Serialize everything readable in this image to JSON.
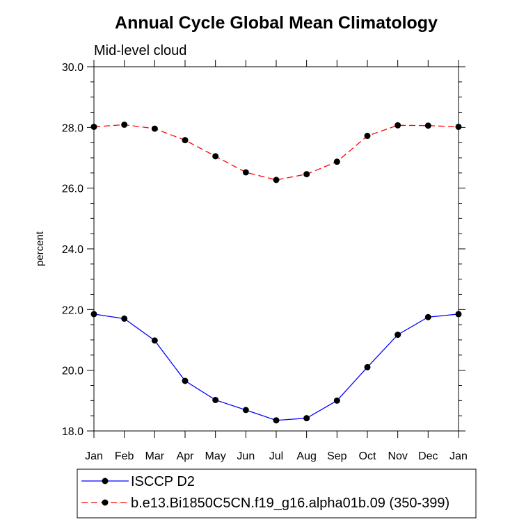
{
  "chart_data": {
    "type": "line",
    "title": "Annual Cycle Global Mean Climatology",
    "subtitle": "Mid-level cloud",
    "ylabel": "percent",
    "xlabel": "",
    "categories": [
      "Jan",
      "Feb",
      "Mar",
      "Apr",
      "May",
      "Jun",
      "Jul",
      "Aug",
      "Sep",
      "Oct",
      "Nov",
      "Dec",
      "Jan"
    ],
    "ylim": [
      18.0,
      30.0
    ],
    "yticks": [
      "18.0",
      "20.0",
      "22.0",
      "24.0",
      "26.0",
      "28.0",
      "30.0"
    ],
    "grid": false,
    "legend_position": "bottom",
    "series": [
      {
        "name": "ISCCP D2",
        "color": "#0000ff",
        "dash": "solid",
        "values": [
          21.85,
          21.7,
          20.98,
          19.65,
          19.02,
          18.69,
          18.35,
          18.42,
          19.0,
          20.1,
          21.17,
          21.75,
          21.85
        ]
      },
      {
        "name": "b.e13.Bi1850C5CN.f19_g16.alpha01b.09 (350-399)",
        "color": "#ff0000",
        "dash": "dashed",
        "values": [
          28.02,
          28.09,
          27.96,
          27.58,
          27.05,
          26.52,
          26.27,
          26.46,
          26.87,
          27.72,
          28.07,
          28.06,
          28.02
        ]
      }
    ]
  }
}
